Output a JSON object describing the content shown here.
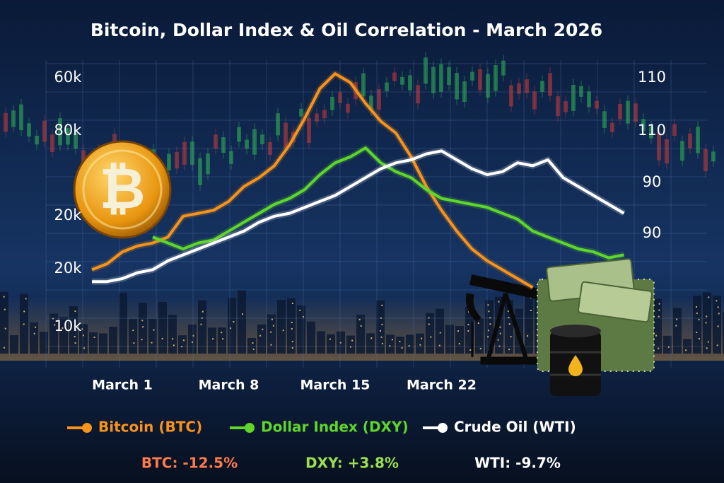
{
  "chart_data": {
    "type": "line",
    "title": "Bitcoin, Dollar Index & Oil Correlation - March 2026",
    "left_axis_labels": [
      "60k",
      "80k",
      "20k",
      "20k",
      "10k"
    ],
    "right_axis_labels": [
      "110",
      "110",
      "90",
      "90"
    ],
    "categories": [
      null,
      null,
      "March 1",
      null,
      null,
      null,
      null,
      null,
      null,
      "March 8",
      null,
      null,
      null,
      null,
      null,
      null,
      "March 15",
      null,
      null,
      null,
      null,
      null,
      null,
      "March 22",
      null,
      null,
      null,
      null,
      null,
      null,
      null,
      null,
      null,
      null,
      null,
      null
    ],
    "ylim": [
      0,
      100
    ],
    "series": [
      {
        "name": "Bitcoin (BTC)",
        "color": "#f7931a",
        "values": [
          33,
          35,
          39,
          41,
          42,
          44,
          51,
          52,
          53,
          56,
          61,
          64,
          68,
          75,
          84,
          94,
          99,
          96,
          89,
          83,
          79,
          71,
          61,
          53,
          46,
          40,
          36,
          33,
          30,
          27,
          null,
          null,
          null,
          null,
          null,
          null
        ]
      },
      {
        "name": "Dollar Index (DXY)",
        "color": "#5fd62a",
        "values": [
          null,
          null,
          null,
          null,
          44,
          42,
          40,
          42,
          43,
          46,
          49,
          52,
          55,
          57,
          60,
          65,
          69,
          71,
          74,
          69,
          66,
          64,
          60,
          57,
          56,
          55,
          54,
          52,
          50,
          46,
          44,
          42,
          40,
          39,
          37,
          38
        ]
      },
      {
        "name": "Crude Oil (WTI)",
        "color": "#ffffff",
        "values": [
          29,
          29,
          30,
          32,
          33,
          36,
          38,
          40,
          42,
          44,
          46,
          49,
          51,
          52,
          54,
          56,
          58,
          61,
          64,
          67,
          69,
          70,
          72,
          73,
          70,
          67,
          65,
          66,
          69,
          68,
          70,
          64,
          61,
          58,
          55,
          52
        ]
      }
    ],
    "stats": [
      {
        "text": "BTC: -12.5%",
        "color": "#ff7a4a"
      },
      {
        "text": "DXY: +3.8%",
        "color": "#9be04f"
      },
      {
        "text": "WTI: -9.7%",
        "color": "#ffffff"
      }
    ]
  }
}
